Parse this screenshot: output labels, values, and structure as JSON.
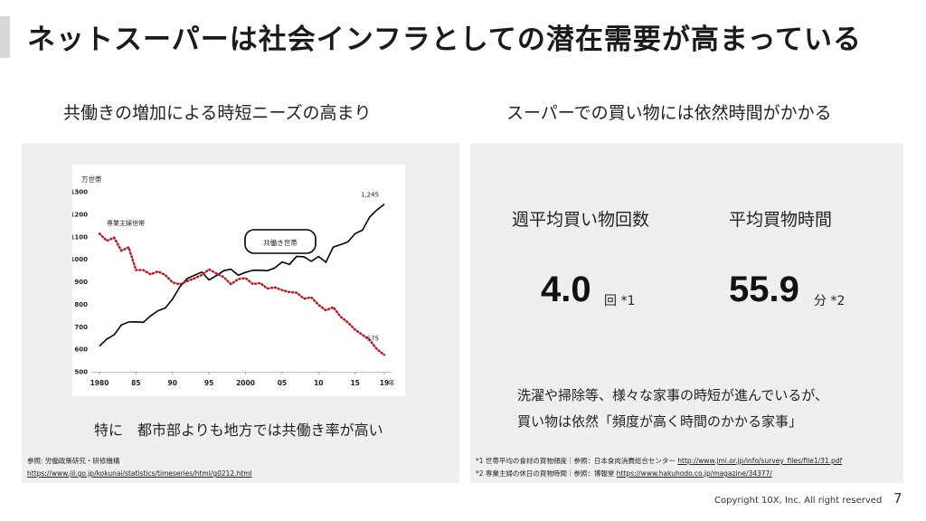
{
  "slide": {
    "title": "ネットスーパーは社会インフラとしての潜在需要が高まっている",
    "left": {
      "heading": "共働きの増加による時短ニーズの高まり",
      "caption": "特に　都市部よりも地方では共働き率が高い",
      "ref_line1": "参照: 労働政策研究・研修機構",
      "ref_line2": "https://www.jil.go.jp/kokunai/statistics/timeseries/html/g0212.html"
    },
    "right": {
      "heading": "スーパーでの買い物には依然時間がかかる",
      "metric1": {
        "label": "週平均買い物回数",
        "value": "4.0",
        "unit": "回 *1"
      },
      "metric2": {
        "label": "平均買物時間",
        "value": "55.9",
        "unit": "分 *2"
      },
      "note_line1": "洗濯や掃除等、様々な家事の時短が進んでいるが、",
      "note_line2": "買い物は依然「頻度が高く時間のかかる家事」",
      "ref1_text": "*1 世帯平均の食材の買物頻度｜参照：日本食肉消費総合センター ",
      "ref1_url": "http://www.jmi.or.jp/info/survey_files/file1/31.pdf",
      "ref2_text": "*2 専業主婦の休日の買物時間｜参照：博報堂 ",
      "ref2_url": "https://www.hakuhodo.co.jp/magazine/34377/"
    },
    "footer": "Copyright 10X, Inc. All right reserved",
    "page_number": "7"
  },
  "chart_data": {
    "type": "line",
    "ylabel": "万世帯",
    "xlabel": "年",
    "ylim": [
      500,
      1300
    ],
    "yticks": [
      "1300",
      "1200",
      "1100",
      "1000",
      "900",
      "800",
      "700",
      "600",
      "500"
    ],
    "xticks": [
      "1980",
      "85",
      "90",
      "95",
      "2000",
      "05",
      "10",
      "15",
      "19"
    ],
    "x": [
      1980,
      1981,
      1982,
      1983,
      1984,
      1985,
      1986,
      1987,
      1988,
      1989,
      1990,
      1991,
      1992,
      1993,
      1994,
      1995,
      1996,
      1997,
      1998,
      1999,
      2000,
      2001,
      2002,
      2003,
      2004,
      2005,
      2006,
      2007,
      2008,
      2009,
      2010,
      2011,
      2012,
      2013,
      2014,
      2015,
      2016,
      2017,
      2018,
      2019
    ],
    "series": [
      {
        "name": "共働き世帯",
        "style": "solid",
        "color": "#000000",
        "values": [
          614,
          645,
          664,
          708,
          721,
          722,
          720,
          748,
          771,
          783,
          823,
          877,
          914,
          929,
          943,
          908,
          927,
          949,
          956,
          929,
          942,
          951,
          951,
          949,
          961,
          988,
          977,
          1013,
          1011,
          991,
          1012,
          987,
          1054,
          1065,
          1077,
          1114,
          1129,
          1188,
          1219,
          1245
        ],
        "end_label": "1,245"
      },
      {
        "name": "専業主婦世帯",
        "style": "dotted",
        "color": "#c0101a",
        "values": [
          1114,
          1082,
          1096,
          1038,
          1053,
          952,
          952,
          933,
          946,
          930,
          897,
          888,
          903,
          915,
          930,
          955,
          937,
          921,
          889,
          912,
          916,
          890,
          894,
          870,
          875,
          863,
          854,
          851,
          825,
          831,
          797,
          773,
          787,
          745,
          720,
          687,
          664,
          641,
          600,
          575
        ],
        "end_label": "575"
      }
    ]
  }
}
